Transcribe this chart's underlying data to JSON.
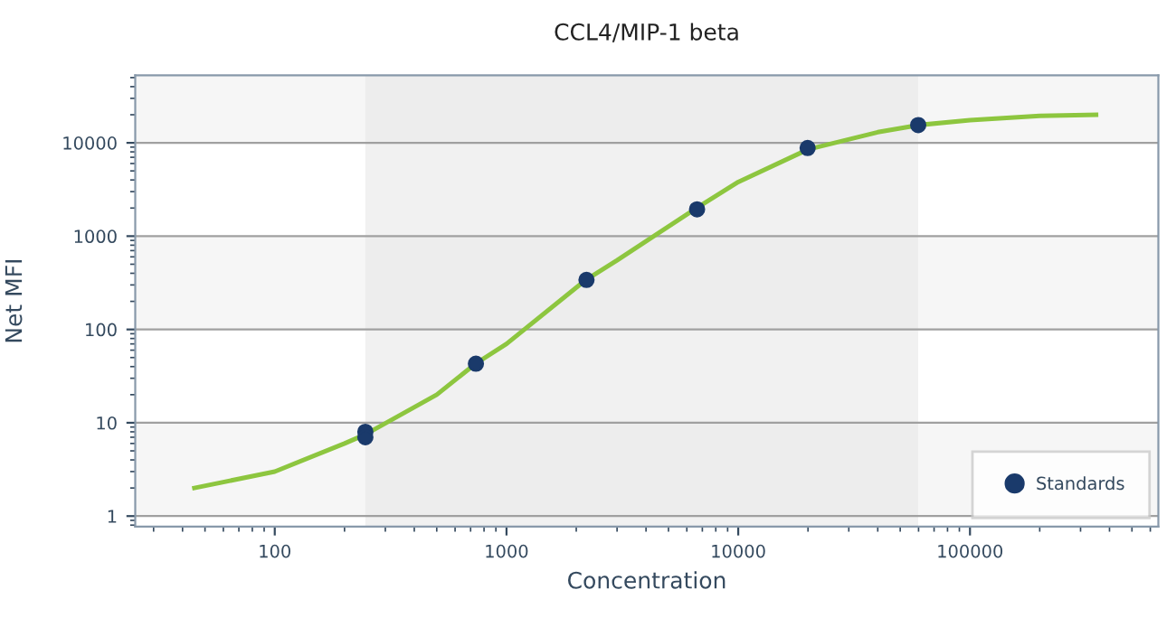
{
  "chart_data": {
    "type": "scatter",
    "title": "CCL4/MIP-1 beta",
    "xlabel": "Concentration",
    "ylabel": "Net MFI",
    "log": "xy",
    "series": [
      {
        "type": "line",
        "color": "#8dc63f",
        "marker": "none",
        "x": [
          45,
          100,
          200,
          246,
          500,
          736,
          1000,
          2200,
          3000,
          6600,
          10000,
          20000,
          40000,
          60000,
          100000,
          200000,
          350000
        ],
        "values": [
          2,
          3,
          6,
          7.5,
          20,
          43,
          70,
          340,
          550,
          2000,
          3800,
          8500,
          13000,
          15500,
          17500,
          19500,
          20000
        ]
      },
      {
        "name": "Standards",
        "color": "#1a3a6b",
        "marker": "circle",
        "x": [
          246,
          246,
          738,
          2214,
          6642,
          19926,
          59778
        ],
        "values": [
          8,
          7,
          43,
          340,
          1940,
          8800,
          15500
        ]
      }
    ],
    "xlim": [
      25,
      650000
    ],
    "ylim": [
      0.77,
      53000
    ],
    "xticks": [
      100,
      1000,
      10000,
      100000
    ],
    "yticks": [
      1,
      10,
      100,
      1000,
      10000
    ],
    "grid": "y",
    "legend": "bottom right",
    "bands": [
      {
        "axis": "y",
        "from": 10000,
        "to": 53000,
        "color": "#f6f6f6"
      },
      {
        "axis": "y",
        "from": 100,
        "to": 1000,
        "color": "#f6f6f6"
      },
      {
        "axis": "y",
        "from": 1,
        "to": 10,
        "color": "#f6f6f6"
      },
      {
        "axis": "x",
        "from": 246,
        "to": 59778,
        "color": "#e8e8e8"
      }
    ]
  }
}
